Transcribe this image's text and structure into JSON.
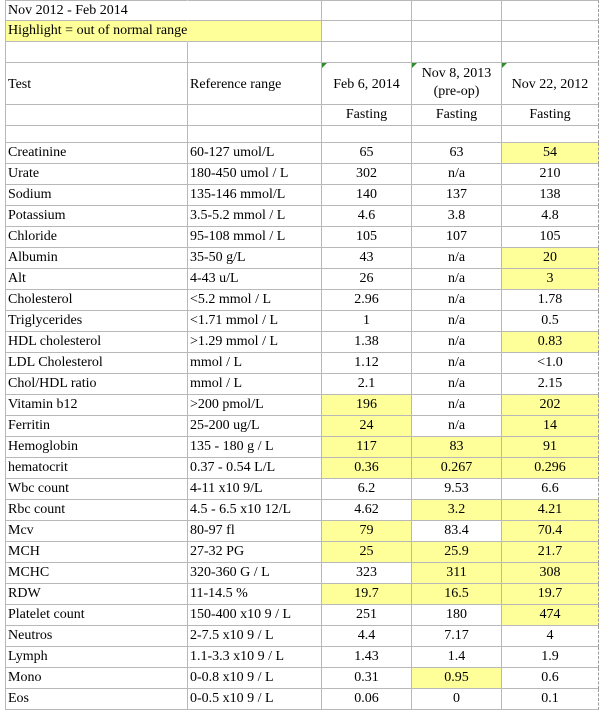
{
  "sheet": {
    "title": "Nov 2012 - Feb 2014",
    "note": "Highlight = out of normal range",
    "header": {
      "test": "Test",
      "reference": "Reference range",
      "col_feb2014": "Feb 6, 2014",
      "col_nov2013_line1": "Nov 8, 2013",
      "col_nov2013_line2": "(pre-op)",
      "col_nov2012": "Nov 22, 2012"
    },
    "fasting": [
      "Fasting",
      "Fasting",
      "Fasting"
    ],
    "highlight_color": "#ffff99",
    "rows": [
      {
        "test": "Creatinine",
        "ref": "60-127 umol/L",
        "v": [
          "65",
          "63",
          "54"
        ],
        "hl": [
          false,
          false,
          true
        ]
      },
      {
        "test": "Urate",
        "ref": "180-450 umol / L",
        "v": [
          "302",
          "n/a",
          "210"
        ],
        "hl": [
          false,
          false,
          false
        ]
      },
      {
        "test": "Sodium",
        "ref": "135-146 mmol/L",
        "v": [
          "140",
          "137",
          "138"
        ],
        "hl": [
          false,
          false,
          false
        ]
      },
      {
        "test": "Potassium",
        "ref": "3.5-5.2 mmol / L",
        "v": [
          "4.6",
          "3.8",
          "4.8"
        ],
        "hl": [
          false,
          false,
          false
        ]
      },
      {
        "test": "Chloride",
        "ref": "95-108 mmol / L",
        "v": [
          "105",
          "107",
          "105"
        ],
        "hl": [
          false,
          false,
          false
        ]
      },
      {
        "test": "Albumin",
        "ref": "35-50 g/L",
        "v": [
          "43",
          "n/a",
          "20"
        ],
        "hl": [
          false,
          false,
          true
        ]
      },
      {
        "test": "Alt",
        "ref": "4-43 u/L",
        "v": [
          "26",
          "n/a",
          "3"
        ],
        "hl": [
          false,
          false,
          true
        ]
      },
      {
        "test": "Cholesterol",
        "ref": "<5.2 mmol / L",
        "v": [
          "2.96",
          "n/a",
          "1.78"
        ],
        "hl": [
          false,
          false,
          false
        ]
      },
      {
        "test": "Triglycerides",
        "ref": "<1.71 mmol / L",
        "v": [
          "1",
          "n/a",
          "0.5"
        ],
        "hl": [
          false,
          false,
          false
        ]
      },
      {
        "test": "HDL cholesterol",
        "ref": ">1.29 mmol / L",
        "v": [
          "1.38",
          "n/a",
          "0.83"
        ],
        "hl": [
          false,
          false,
          true
        ]
      },
      {
        "test": "LDL Cholesterol",
        "ref": "mmol / L",
        "v": [
          "1.12",
          "n/a",
          "<1.0"
        ],
        "hl": [
          false,
          false,
          false
        ]
      },
      {
        "test": "Chol/HDL ratio",
        "ref": "mmol / L",
        "v": [
          "2.1",
          "n/a",
          "2.15"
        ],
        "hl": [
          false,
          false,
          false
        ]
      },
      {
        "test": "Vitamin b12",
        "ref": ">200 pmol/L",
        "v": [
          "196",
          "n/a",
          "202"
        ],
        "hl": [
          true,
          false,
          true
        ]
      },
      {
        "test": "Ferritin",
        "ref": "25-200 ug/L",
        "v": [
          "24",
          "n/a",
          "14"
        ],
        "hl": [
          true,
          false,
          true
        ]
      },
      {
        "test": "Hemoglobin",
        "ref": "135 - 180 g / L",
        "v": [
          "117",
          "83",
          "91"
        ],
        "hl": [
          true,
          true,
          true
        ]
      },
      {
        "test": "hematocrit",
        "ref": "0.37 - 0.54 L/L",
        "v": [
          "0.36",
          "0.267",
          "0.296"
        ],
        "hl": [
          true,
          true,
          true
        ]
      },
      {
        "test": "Wbc count",
        "ref": "4-11 x10 9/L",
        "v": [
          "6.2",
          "9.53",
          "6.6"
        ],
        "hl": [
          false,
          false,
          false
        ]
      },
      {
        "test": "Rbc count",
        "ref": "4.5 - 6.5 x10 12/L",
        "v": [
          "4.62",
          "3.2",
          "4.21"
        ],
        "hl": [
          false,
          true,
          true
        ]
      },
      {
        "test": "Mcv",
        "ref": "80-97 fl",
        "v": [
          "79",
          "83.4",
          "70.4"
        ],
        "hl": [
          true,
          false,
          true
        ]
      },
      {
        "test": "MCH",
        "ref": "27-32 PG",
        "v": [
          "25",
          "25.9",
          "21.7"
        ],
        "hl": [
          true,
          true,
          true
        ]
      },
      {
        "test": "MCHC",
        "ref": "320-360 G / L",
        "v": [
          "323",
          "311",
          "308"
        ],
        "hl": [
          false,
          true,
          true
        ]
      },
      {
        "test": "RDW",
        "ref": "11-14.5 %",
        "v": [
          "19.7",
          "16.5",
          "19.7"
        ],
        "hl": [
          true,
          true,
          true
        ]
      },
      {
        "test": "Platelet count",
        "ref": "150-400 x10 9 / L",
        "v": [
          "251",
          "180",
          "474"
        ],
        "hl": [
          false,
          false,
          true
        ]
      },
      {
        "test": "Neutros",
        "ref": "2-7.5 x10 9 / L",
        "v": [
          "4.4",
          "7.17",
          "4"
        ],
        "hl": [
          false,
          false,
          false
        ]
      },
      {
        "test": "Lymph",
        "ref": "1.1-3.3 x10 9 / L",
        "v": [
          "1.43",
          "1.4",
          "1.9"
        ],
        "hl": [
          false,
          false,
          false
        ]
      },
      {
        "test": "Mono",
        "ref": "0-0.8 x10 9 / L",
        "v": [
          "0.31",
          "0.95",
          "0.6"
        ],
        "hl": [
          false,
          true,
          false
        ]
      },
      {
        "test": "Eos",
        "ref": "0-0.5 x10 9 / L",
        "v": [
          "0.06",
          "0",
          "0.1"
        ],
        "hl": [
          false,
          false,
          false
        ]
      }
    ]
  }
}
